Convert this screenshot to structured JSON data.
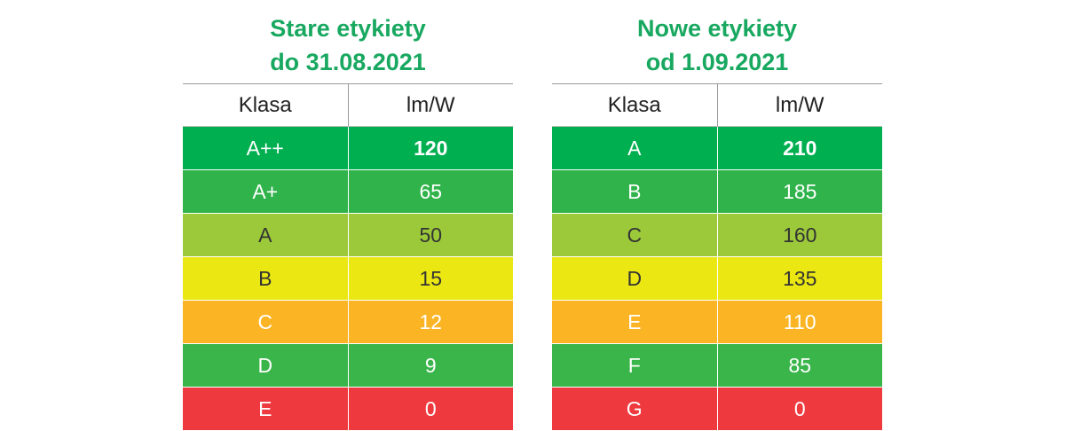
{
  "left": {
    "title_line1": "Stare etykiety",
    "title_line2": "do 31.08.2021",
    "header": [
      "Klasa",
      "lm/W"
    ],
    "rows": [
      {
        "klasa": "A++",
        "lmw": "120"
      },
      {
        "klasa": "A+",
        "lmw": "65"
      },
      {
        "klasa": "A",
        "lmw": "50"
      },
      {
        "klasa": "B",
        "lmw": "15"
      },
      {
        "klasa": "C",
        "lmw": "12"
      },
      {
        "klasa": "D",
        "lmw": "9"
      },
      {
        "klasa": "E",
        "lmw": "0"
      }
    ]
  },
  "right": {
    "title_line1": "Nowe etykiety",
    "title_line2": "od 1.09.2021",
    "header": [
      "Klasa",
      "lm/W"
    ],
    "rows": [
      {
        "klasa": "A",
        "lmw": "210"
      },
      {
        "klasa": "B",
        "lmw": "185"
      },
      {
        "klasa": "C",
        "lmw": "160"
      },
      {
        "klasa": "D",
        "lmw": "135"
      },
      {
        "klasa": "E",
        "lmw": "110"
      },
      {
        "klasa": "F",
        "lmw": "85"
      },
      {
        "klasa": "G",
        "lmw": "0"
      }
    ]
  },
  "colors": {
    "title": "#18a860",
    "row1": "#00af50",
    "row2": "#2fb34a",
    "row3": "#9bc93a",
    "row4": "#ebe712",
    "row5": "#fbb524",
    "row6": "#3ab54a",
    "row7": "#ee3a3f"
  }
}
